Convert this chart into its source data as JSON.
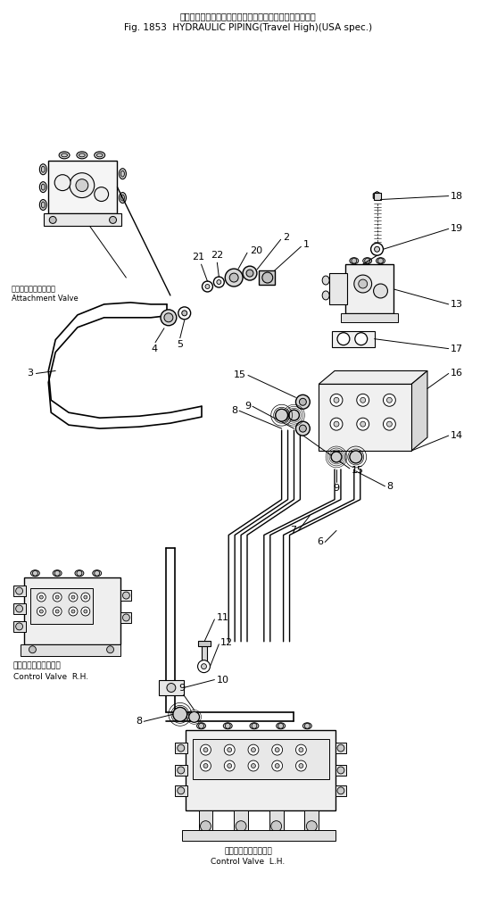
{
  "title_jp": "ハイドロリックパイピング（走行増速）（アメリカ仕様）",
  "title_en": "Fig. 1853  HYDRAULIC PIPING(Travel High)(USA spec.)",
  "bg": "#ffffff",
  "lc": "#000000",
  "label_attach_jp": "アタッチメントバルブ",
  "label_attach_en": "Attachment Valve",
  "label_ctrl_r_jp": "コントロールバルブ右",
  "label_ctrl_r_en": "Control Valve  R.H.",
  "label_ctrl_l_jp": "コントロールバルブ左",
  "label_ctrl_l_en": "Control Valve  L.H."
}
